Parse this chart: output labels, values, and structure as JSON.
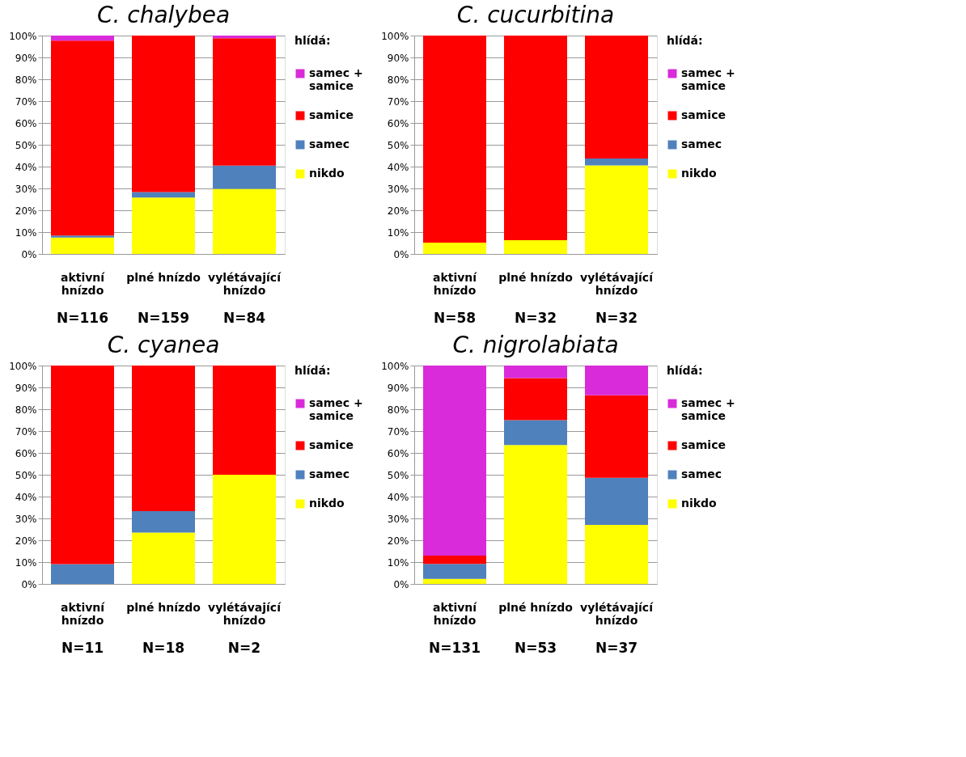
{
  "chart_data": [
    {
      "type": "bar",
      "title": "C. chalybea",
      "stacked": true,
      "categories": [
        "aktivní hnízdo",
        "plné hnízdo",
        "vylétávající hnízdo"
      ],
      "legend_title": "hlídá:",
      "legend": "right",
      "grid": "y",
      "ylim": [
        0,
        100
      ],
      "yticks": [
        {
          "value": 0,
          "label": "0%"
        },
        {
          "value": 10,
          "label": "10%"
        },
        {
          "value": 20,
          "label": "20%"
        },
        {
          "value": 30,
          "label": "30%"
        },
        {
          "value": 40,
          "label": "40%"
        },
        {
          "value": 50,
          "label": "50%"
        },
        {
          "value": 60,
          "label": "60%"
        },
        {
          "value": 70,
          "label": "70%"
        },
        {
          "value": 80,
          "label": "80%"
        },
        {
          "value": 90,
          "label": "90%"
        },
        {
          "value": 100,
          "label": "100%"
        }
      ],
      "series": [
        {
          "name": "nikdo",
          "color": "#ffff00",
          "values": [
            7.5,
            25.8,
            29.8
          ]
        },
        {
          "name": "samec",
          "color": "#4f81bd",
          "values": [
            0.9,
            2.5,
            10.7
          ]
        },
        {
          "name": "samice",
          "color": "#ff0000",
          "values": [
            89.3,
            71.7,
            58.3
          ]
        },
        {
          "name": "samec + samice",
          "color": "#d92bd9",
          "values": [
            2.3,
            0,
            1.2
          ]
        }
      ],
      "annotations": [
        "N=116",
        "N=159",
        "N=84"
      ]
    },
    {
      "type": "bar",
      "title": "C. cucurbitina",
      "stacked": true,
      "categories": [
        "aktivní hnízdo",
        "plné hnízdo",
        "vylétávající hnízdo"
      ],
      "legend_title": "hlídá:",
      "legend": "right",
      "grid": "y",
      "ylim": [
        0,
        100
      ],
      "yticks": [
        {
          "value": 0,
          "label": "0%"
        },
        {
          "value": 10,
          "label": "10%"
        },
        {
          "value": 20,
          "label": "20%"
        },
        {
          "value": 30,
          "label": "30%"
        },
        {
          "value": 40,
          "label": "40%"
        },
        {
          "value": 50,
          "label": "50%"
        },
        {
          "value": 60,
          "label": "60%"
        },
        {
          "value": 70,
          "label": "70%"
        },
        {
          "value": 80,
          "label": "80%"
        },
        {
          "value": 90,
          "label": "90%"
        },
        {
          "value": 100,
          "label": "100%"
        }
      ],
      "series": [
        {
          "name": "nikdo",
          "color": "#ffff00",
          "values": [
            5.2,
            6.3,
            40.6
          ]
        },
        {
          "name": "samec",
          "color": "#4f81bd",
          "values": [
            0,
            0,
            3.1
          ]
        },
        {
          "name": "samice",
          "color": "#ff0000",
          "values": [
            94.8,
            93.7,
            56.3
          ]
        },
        {
          "name": "samec + samice",
          "color": "#d92bd9",
          "values": [
            0,
            0,
            0
          ]
        }
      ],
      "annotations": [
        "N=58",
        "N=32",
        "N=32"
      ]
    },
    {
      "type": "bar",
      "title": "C. cyanea",
      "stacked": true,
      "categories": [
        "aktivní hnízdo",
        "plné hnízdo",
        "vylétávající hnízdo"
      ],
      "legend_title": "hlídá:",
      "legend": "right",
      "grid": "y",
      "ylim": [
        0,
        100
      ],
      "yticks": [
        {
          "value": 0,
          "label": "0%"
        },
        {
          "value": 10,
          "label": "10%"
        },
        {
          "value": 20,
          "label": "20%"
        },
        {
          "value": 30,
          "label": "30%"
        },
        {
          "value": 40,
          "label": "40%"
        },
        {
          "value": 50,
          "label": "50%"
        },
        {
          "value": 60,
          "label": "60%"
        },
        {
          "value": 70,
          "label": "70%"
        },
        {
          "value": 80,
          "label": "80%"
        },
        {
          "value": 90,
          "label": "90%"
        },
        {
          "value": 100,
          "label": "100%"
        }
      ],
      "series": [
        {
          "name": "nikdo",
          "color": "#ffff00",
          "values": [
            0,
            23.5,
            50
          ]
        },
        {
          "name": "samec",
          "color": "#4f81bd",
          "values": [
            9.1,
            9.8,
            0
          ]
        },
        {
          "name": "samice",
          "color": "#ff0000",
          "values": [
            90.9,
            66.7,
            50
          ]
        },
        {
          "name": "samec + samice",
          "color": "#d92bd9",
          "values": [
            0,
            0,
            0
          ]
        }
      ],
      "annotations": [
        "N=11",
        "N=18",
        "N=2"
      ]
    },
    {
      "type": "bar",
      "title": "C. nigrolabiata",
      "stacked": true,
      "categories": [
        "aktivní hnízdo",
        "plné hnízdo",
        "vylétávající hnízdo"
      ],
      "legend_title": "hlídá:",
      "legend": "right",
      "grid": "y",
      "ylim": [
        0,
        100
      ],
      "yticks": [
        {
          "value": 0,
          "label": "0%"
        },
        {
          "value": 10,
          "label": "10%"
        },
        {
          "value": 20,
          "label": "20%"
        },
        {
          "value": 30,
          "label": "30%"
        },
        {
          "value": 40,
          "label": "40%"
        },
        {
          "value": 50,
          "label": "50%"
        },
        {
          "value": 60,
          "label": "60%"
        },
        {
          "value": 70,
          "label": "70%"
        },
        {
          "value": 80,
          "label": "80%"
        },
        {
          "value": 90,
          "label": "90%"
        },
        {
          "value": 100,
          "label": "100%"
        }
      ],
      "series": [
        {
          "name": "nikdo",
          "color": "#ffff00",
          "values": [
            2.3,
            63.6,
            27
          ]
        },
        {
          "name": "samec",
          "color": "#4f81bd",
          "values": [
            6.9,
            11.4,
            21.6
          ]
        },
        {
          "name": "samice",
          "color": "#ff0000",
          "values": [
            3.8,
            19.3,
            37.8
          ]
        },
        {
          "name": "samec + samice",
          "color": "#d92bd9",
          "values": [
            87,
            5.7,
            13.6
          ]
        }
      ],
      "annotations": [
        "N=131",
        "N=53",
        "N=37"
      ]
    }
  ]
}
